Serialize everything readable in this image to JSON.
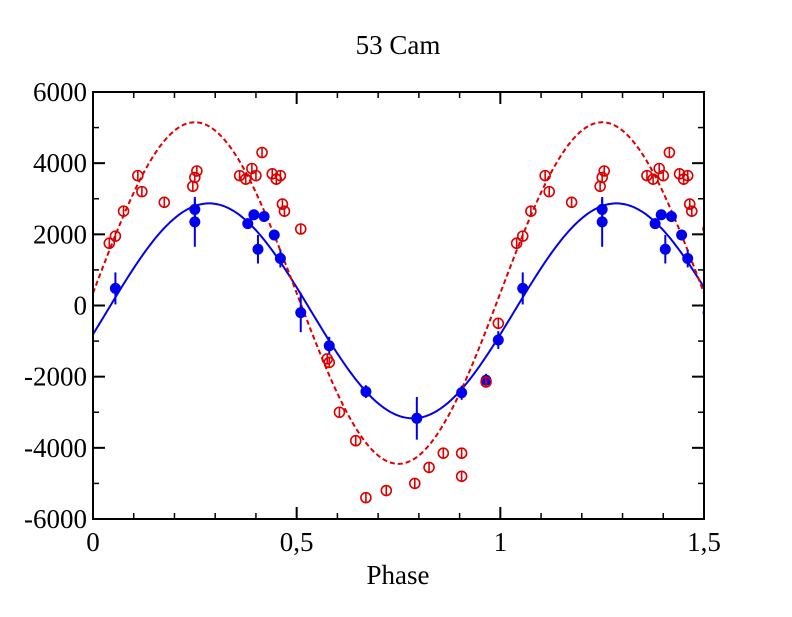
{
  "chart_data": {
    "type": "scatter",
    "title": "53 Cam",
    "xlabel": "Phase",
    "ylabel": "",
    "xlim": [
      0,
      1.5
    ],
    "ylim": [
      -6000,
      6000
    ],
    "x_ticks": [
      "0",
      "0,5",
      "1",
      "1,5"
    ],
    "x_tick_values": [
      0,
      0.5,
      1,
      1.5
    ],
    "y_ticks": [
      "6000",
      "4000",
      "2000",
      "0",
      "-2000",
      "-4000",
      "-6000"
    ],
    "y_tick_values": [
      6000,
      4000,
      2000,
      0,
      -2000,
      -4000,
      -6000
    ],
    "colors": {
      "blue": "#0000ee",
      "red": "#dd0000"
    },
    "series": [
      {
        "marker": "filled-circle",
        "color": "#0000ee",
        "points": [
          {
            "x": 0.055,
            "y": 480,
            "err": 450
          },
          {
            "x": 0.25,
            "y": 2700,
            "err": 300
          },
          {
            "x": 0.25,
            "y": 2350,
            "err": 700
          },
          {
            "x": 0.38,
            "y": 2300,
            "err": 150
          },
          {
            "x": 0.395,
            "y": 2550,
            "err": 150
          },
          {
            "x": 0.405,
            "y": 1580,
            "err": 400
          },
          {
            "x": 0.42,
            "y": 2500,
            "err": 150
          },
          {
            "x": 0.445,
            "y": 1980,
            "err": 150
          },
          {
            "x": 0.46,
            "y": 1320,
            "err": 250
          },
          {
            "x": 0.51,
            "y": -200,
            "err": 550
          },
          {
            "x": 0.58,
            "y": -1130,
            "err": 250
          },
          {
            "x": 0.67,
            "y": -2420,
            "err": 180
          },
          {
            "x": 0.795,
            "y": -3170,
            "err": 600
          },
          {
            "x": 0.905,
            "y": -2450,
            "err": 200
          },
          {
            "x": 0.965,
            "y": -2100,
            "err": 180
          },
          {
            "x": 0.995,
            "y": -970,
            "err": 250
          }
        ]
      },
      {
        "marker": "open-circle-bar",
        "color": "#dd0000",
        "points": [
          {
            "x": 0.04,
            "y": 1750
          },
          {
            "x": 0.055,
            "y": 1950
          },
          {
            "x": 0.075,
            "y": 2650
          },
          {
            "x": 0.11,
            "y": 3650
          },
          {
            "x": 0.12,
            "y": 3200
          },
          {
            "x": 0.175,
            "y": 2900
          },
          {
            "x": 0.245,
            "y": 3350
          },
          {
            "x": 0.25,
            "y": 3600
          },
          {
            "x": 0.255,
            "y": 3780
          },
          {
            "x": 0.36,
            "y": 3650
          },
          {
            "x": 0.375,
            "y": 3550
          },
          {
            "x": 0.39,
            "y": 3850
          },
          {
            "x": 0.4,
            "y": 3650
          },
          {
            "x": 0.415,
            "y": 4300
          },
          {
            "x": 0.44,
            "y": 3700
          },
          {
            "x": 0.45,
            "y": 3550
          },
          {
            "x": 0.46,
            "y": 3650
          },
          {
            "x": 0.465,
            "y": 2850
          },
          {
            "x": 0.47,
            "y": 2650
          },
          {
            "x": 0.51,
            "y": 2150
          },
          {
            "x": 0.575,
            "y": -1500
          },
          {
            "x": 0.58,
            "y": -1600
          },
          {
            "x": 0.605,
            "y": -3000
          },
          {
            "x": 0.645,
            "y": -3800
          },
          {
            "x": 0.67,
            "y": -5400
          },
          {
            "x": 0.72,
            "y": -5200
          },
          {
            "x": 0.79,
            "y": -5000
          },
          {
            "x": 0.825,
            "y": -4550
          },
          {
            "x": 0.86,
            "y": -4150
          },
          {
            "x": 0.905,
            "y": -4150
          },
          {
            "x": 0.905,
            "y": -4800
          },
          {
            "x": 0.965,
            "y": -2150
          },
          {
            "x": 0.995,
            "y": -500
          }
        ]
      }
    ],
    "fit_curves": [
      {
        "style": "solid",
        "color": "#0000ee",
        "mean": -150,
        "amplitude": 3020,
        "phase_of_max": 0.285
      },
      {
        "style": "dashed",
        "color": "#dd0000",
        "mean": 350,
        "amplitude": 4800,
        "phase_of_max": 0.25
      }
    ],
    "repeat_period": 1
  }
}
